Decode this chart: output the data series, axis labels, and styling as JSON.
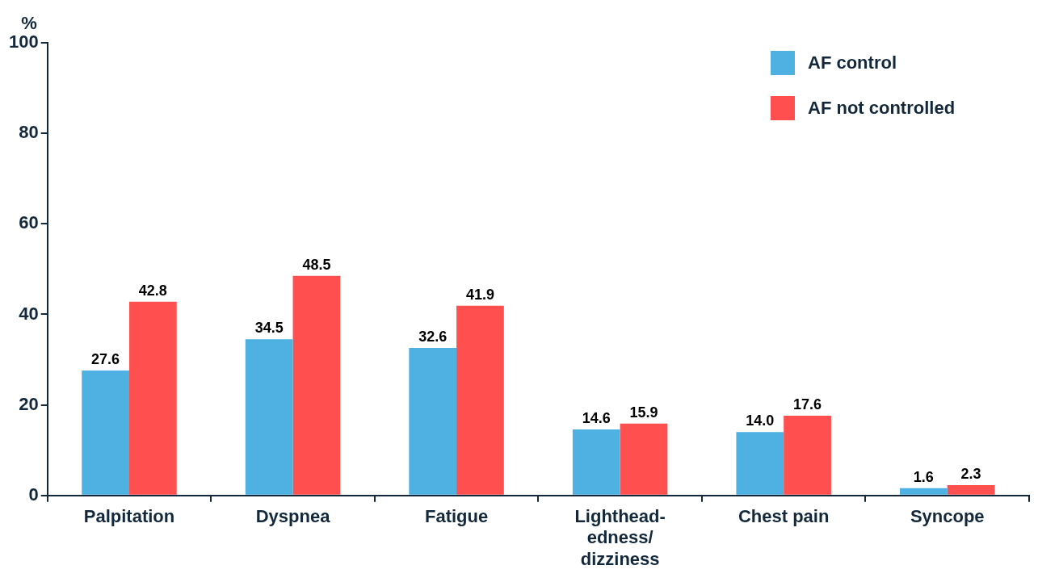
{
  "chart_data": {
    "type": "bar",
    "ylabel": "%",
    "categories": [
      "Palpitation",
      "Dyspnea",
      "Fatigue",
      "Lighthead-\nedness/\ndizziness",
      "Chest pain",
      "Syncope"
    ],
    "series": [
      {
        "name": "AF control",
        "color": "#4fb0e2",
        "values": [
          27.6,
          34.5,
          32.6,
          14.6,
          14.0,
          1.6
        ],
        "value_labels": [
          "27.6",
          "34.5",
          "32.6",
          "14.6",
          "14.0",
          "1.6"
        ]
      },
      {
        "name": "AF not controlled",
        "color": "#ff4f4f",
        "values": [
          42.8,
          48.5,
          41.9,
          15.9,
          17.6,
          2.3
        ],
        "value_labels": [
          "42.8",
          "48.5",
          "41.9",
          "15.9",
          "17.6",
          "2.3"
        ]
      }
    ],
    "ylim": [
      0,
      100
    ],
    "yticks": [
      0,
      20,
      40,
      60,
      80,
      100
    ],
    "grid": false,
    "legend": "top right"
  }
}
